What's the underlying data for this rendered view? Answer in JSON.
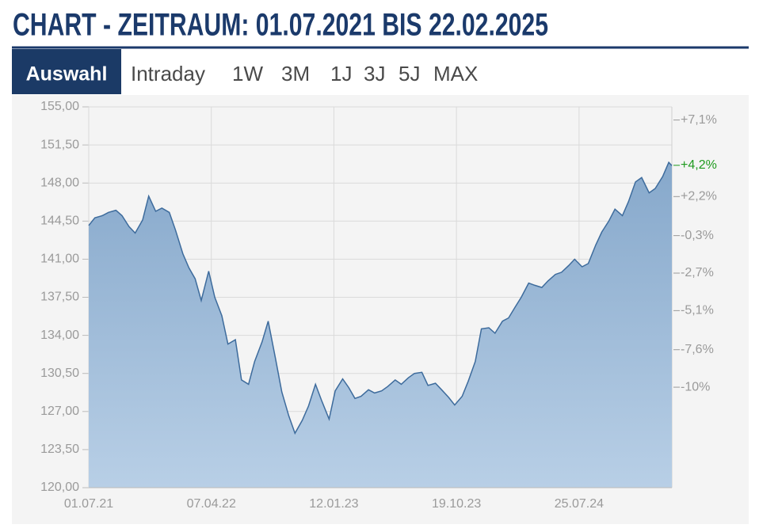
{
  "header": {
    "title": "CHART - ZEITRAUM: 01.07.2021 BIS 22.02.2025"
  },
  "tabs": {
    "active": "Auswahl",
    "items": [
      "Intraday",
      "1W",
      "3M",
      "1J",
      "3J",
      "5J",
      "MAX"
    ]
  },
  "chart_data": {
    "type": "area",
    "color": "#3d6b9c",
    "x": [
      "01.07.21",
      "15.07.21",
      "01.08.21",
      "15.08.21",
      "01.09.21",
      "15.09.21",
      "01.10.21",
      "15.10.21",
      "01.11.21",
      "15.11.21",
      "01.12.21",
      "15.12.21",
      "01.01.22",
      "15.01.22",
      "01.02.22",
      "15.02.22",
      "01.03.22",
      "15.03.22",
      "01.04.22",
      "15.04.22",
      "01.05.22",
      "15.05.22",
      "01.06.22",
      "15.06.22",
      "01.07.22",
      "15.07.22",
      "01.08.22",
      "15.08.22",
      "01.09.22",
      "15.09.22",
      "01.10.22",
      "15.10.22",
      "01.11.22",
      "15.11.22",
      "01.12.22",
      "15.12.22",
      "01.01.23",
      "15.01.23",
      "01.02.23",
      "15.02.23",
      "01.03.23",
      "15.03.23",
      "01.04.23",
      "15.04.23",
      "01.05.23",
      "15.05.23",
      "01.06.23",
      "15.06.23",
      "01.07.23",
      "15.07.23",
      "01.08.23",
      "15.08.23",
      "01.09.23",
      "15.09.23",
      "01.10.23",
      "15.10.23",
      "01.11.23",
      "15.11.23",
      "01.12.23",
      "15.12.23",
      "01.01.24",
      "15.01.24",
      "01.02.24",
      "15.02.24",
      "01.03.24",
      "15.03.24",
      "01.04.24",
      "15.04.24",
      "01.05.24",
      "15.05.24",
      "01.06.24",
      "15.06.24",
      "01.07.24",
      "15.07.24",
      "01.08.24",
      "15.08.24",
      "01.09.24",
      "15.09.24",
      "01.10.24",
      "15.10.24",
      "01.11.24",
      "15.11.24",
      "01.12.24",
      "15.12.24",
      "01.01.25",
      "15.01.25",
      "01.02.25",
      "15.02.25",
      "22.02.25"
    ],
    "values": [
      144.1,
      144.8,
      145.0,
      145.3,
      145.5,
      145.0,
      144.0,
      143.4,
      144.6,
      146.8,
      145.4,
      145.7,
      145.3,
      143.7,
      141.5,
      140.2,
      139.2,
      137.2,
      139.9,
      137.5,
      135.8,
      133.2,
      133.6,
      129.9,
      129.5,
      131.6,
      133.4,
      135.3,
      131.8,
      128.8,
      126.6,
      125.0,
      126.2,
      127.5,
      129.5,
      128.0,
      126.3,
      128.9,
      130.0,
      129.2,
      128.2,
      128.4,
      129.0,
      128.7,
      128.9,
      129.3,
      129.9,
      129.5,
      130.1,
      130.5,
      130.6,
      129.4,
      129.6,
      129.0,
      128.3,
      127.6,
      128.4,
      129.8,
      131.6,
      134.6,
      134.7,
      134.2,
      135.3,
      135.6,
      136.6,
      137.5,
      138.8,
      138.6,
      138.4,
      139.0,
      139.6,
      139.8,
      140.4,
      141.0,
      140.3,
      140.6,
      142.3,
      143.5,
      144.5,
      145.6,
      145.0,
      146.3,
      148.1,
      148.5,
      147.1,
      147.5,
      148.6,
      149.9,
      149.6
    ],
    "xlim": [
      "01.07.21",
      "22.02.25"
    ],
    "xticks": [
      "01.07.21",
      "07.04.22",
      "12.01.23",
      "19.10.23",
      "25.07.24"
    ],
    "ylim": [
      120,
      155
    ],
    "yticks": [
      {
        "value": 120,
        "label": "120,00"
      },
      {
        "value": 123.5,
        "label": "123,50"
      },
      {
        "value": 127,
        "label": "127,00"
      },
      {
        "value": 130.5,
        "label": "130,50"
      },
      {
        "value": 134,
        "label": "134,00"
      },
      {
        "value": 137.5,
        "label": "137,50"
      },
      {
        "value": 141,
        "label": "141,00"
      },
      {
        "value": 144.5,
        "label": "144,50"
      },
      {
        "value": 148,
        "label": "148,00"
      },
      {
        "value": 151.5,
        "label": "151,50"
      },
      {
        "value": 155,
        "label": "155,00"
      }
    ],
    "y2lim": [
      -16.43,
      7.94
    ],
    "y2ticks": [
      {
        "value": 7.1,
        "label": "+7,1%"
      },
      {
        "value": 2.2,
        "label": "+2,2%"
      },
      {
        "value": -0.3,
        "label": "-0,3%"
      },
      {
        "value": -2.7,
        "label": "-2,7%"
      },
      {
        "value": -5.1,
        "label": "-5,1%"
      },
      {
        "value": -7.6,
        "label": "-7,6%"
      },
      {
        "value": -10,
        "label": "-10%"
      }
    ],
    "current_change": {
      "value": 4.2,
      "label": "+4,2%",
      "color": "#1f9a1f"
    },
    "grid": true
  }
}
